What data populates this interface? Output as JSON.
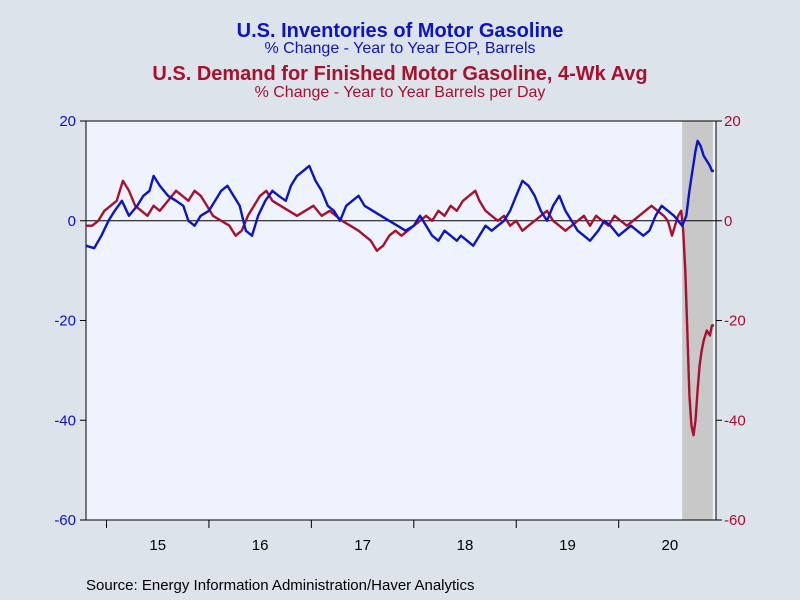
{
  "titles": {
    "title1": "U.S. Inventories of Motor Gasoline",
    "subtitle1": "% Change - Year to Year    EOP,  Barrels",
    "title2": "U.S. Demand for Finished Motor Gasoline, 4-Wk Avg",
    "subtitle2": "% Change - Year to Year     Barrels per Day"
  },
  "source": "Source:  Energy Information Administration/Haver Analytics",
  "colors": {
    "inventories": "#0b14c8",
    "demand": "#a8102e",
    "plot_bg": "#eef3fd",
    "shade": "#c8c8c8"
  },
  "chart_data": {
    "type": "line",
    "ylim": [
      -60,
      20
    ],
    "xlim": [
      2014.3,
      2020.45
    ],
    "y_ticks": [
      20,
      0,
      -20,
      -40,
      -60
    ],
    "x_tick_labels": [
      "15",
      "16",
      "17",
      "18",
      "19",
      "20"
    ],
    "x_label_pos": [
      2015.0,
      2016.0,
      2017.0,
      2018.0,
      2019.0,
      2020.0
    ],
    "recession_shade": [
      2020.12,
      2020.42
    ],
    "zero_line": true,
    "series": [
      {
        "name": "U.S. Inventories of Motor Gasoline",
        "axis": "left",
        "points": [
          [
            2014.3,
            -5
          ],
          [
            2014.38,
            -5.5
          ],
          [
            2014.45,
            -3
          ],
          [
            2014.52,
            0
          ],
          [
            2014.58,
            2
          ],
          [
            2014.65,
            4
          ],
          [
            2014.72,
            1
          ],
          [
            2014.8,
            3
          ],
          [
            2014.86,
            5
          ],
          [
            2014.92,
            6
          ],
          [
            2014.96,
            9
          ],
          [
            2015.02,
            7
          ],
          [
            2015.1,
            5
          ],
          [
            2015.18,
            4
          ],
          [
            2015.25,
            3
          ],
          [
            2015.3,
            0
          ],
          [
            2015.36,
            -1
          ],
          [
            2015.42,
            1
          ],
          [
            2015.5,
            2
          ],
          [
            2015.56,
            4
          ],
          [
            2015.62,
            6
          ],
          [
            2015.68,
            7
          ],
          [
            2015.74,
            5
          ],
          [
            2015.8,
            3
          ],
          [
            2015.86,
            -2
          ],
          [
            2015.92,
            -3
          ],
          [
            2015.98,
            1
          ],
          [
            2016.05,
            4
          ],
          [
            2016.12,
            6
          ],
          [
            2016.18,
            5
          ],
          [
            2016.25,
            4
          ],
          [
            2016.3,
            7
          ],
          [
            2016.36,
            9
          ],
          [
            2016.42,
            10
          ],
          [
            2016.48,
            11
          ],
          [
            2016.54,
            8
          ],
          [
            2016.6,
            6
          ],
          [
            2016.66,
            3
          ],
          [
            2016.72,
            2
          ],
          [
            2016.78,
            0
          ],
          [
            2016.84,
            3
          ],
          [
            2016.9,
            4
          ],
          [
            2016.96,
            5
          ],
          [
            2017.02,
            3
          ],
          [
            2017.1,
            2
          ],
          [
            2017.18,
            1
          ],
          [
            2017.26,
            0
          ],
          [
            2017.34,
            -1
          ],
          [
            2017.42,
            -2
          ],
          [
            2017.5,
            -1
          ],
          [
            2017.56,
            1
          ],
          [
            2017.62,
            -1
          ],
          [
            2017.68,
            -3
          ],
          [
            2017.74,
            -4
          ],
          [
            2017.8,
            -2
          ],
          [
            2017.86,
            -3
          ],
          [
            2017.92,
            -4
          ],
          [
            2017.96,
            -3
          ],
          [
            2018.02,
            -4
          ],
          [
            2018.08,
            -5
          ],
          [
            2018.14,
            -3
          ],
          [
            2018.2,
            -1
          ],
          [
            2018.26,
            -2
          ],
          [
            2018.32,
            -1
          ],
          [
            2018.38,
            0
          ],
          [
            2018.44,
            2
          ],
          [
            2018.5,
            5
          ],
          [
            2018.56,
            8
          ],
          [
            2018.62,
            7
          ],
          [
            2018.68,
            5
          ],
          [
            2018.74,
            2
          ],
          [
            2018.8,
            0
          ],
          [
            2018.86,
            3
          ],
          [
            2018.92,
            5
          ],
          [
            2018.98,
            2
          ],
          [
            2019.04,
            0
          ],
          [
            2019.1,
            -2
          ],
          [
            2019.16,
            -3
          ],
          [
            2019.22,
            -4
          ],
          [
            2019.3,
            -2
          ],
          [
            2019.36,
            0
          ],
          [
            2019.42,
            -1
          ],
          [
            2019.5,
            -3
          ],
          [
            2019.56,
            -2
          ],
          [
            2019.62,
            -1
          ],
          [
            2019.68,
            -2
          ],
          [
            2019.74,
            -3
          ],
          [
            2019.8,
            -2
          ],
          [
            2019.86,
            1
          ],
          [
            2019.92,
            3
          ],
          [
            2019.98,
            2
          ],
          [
            2020.04,
            1
          ],
          [
            2020.08,
            0
          ],
          [
            2020.12,
            -1
          ],
          [
            2020.16,
            1
          ],
          [
            2020.19,
            6
          ],
          [
            2020.22,
            10
          ],
          [
            2020.25,
            14
          ],
          [
            2020.27,
            16
          ],
          [
            2020.3,
            15
          ],
          [
            2020.33,
            13
          ],
          [
            2020.36,
            12
          ],
          [
            2020.39,
            11
          ],
          [
            2020.41,
            10
          ],
          [
            2020.43,
            10
          ]
        ]
      },
      {
        "name": "U.S. Demand for Finished Motor Gasoline, 4-Wk Avg",
        "axis": "right",
        "points": [
          [
            2014.3,
            -1
          ],
          [
            2014.36,
            -1
          ],
          [
            2014.42,
            0
          ],
          [
            2014.48,
            2
          ],
          [
            2014.54,
            3
          ],
          [
            2014.6,
            4
          ],
          [
            2014.66,
            8
          ],
          [
            2014.72,
            6
          ],
          [
            2014.78,
            3
          ],
          [
            2014.84,
            2
          ],
          [
            2014.9,
            1
          ],
          [
            2014.96,
            3
          ],
          [
            2015.02,
            2
          ],
          [
            2015.1,
            4
          ],
          [
            2015.18,
            6
          ],
          [
            2015.24,
            5
          ],
          [
            2015.3,
            4
          ],
          [
            2015.36,
            6
          ],
          [
            2015.42,
            5
          ],
          [
            2015.48,
            3
          ],
          [
            2015.54,
            1
          ],
          [
            2015.62,
            0
          ],
          [
            2015.7,
            -1
          ],
          [
            2015.76,
            -3
          ],
          [
            2015.82,
            -2
          ],
          [
            2015.88,
            1
          ],
          [
            2015.94,
            3
          ],
          [
            2016.0,
            5
          ],
          [
            2016.06,
            6
          ],
          [
            2016.12,
            4
          ],
          [
            2016.2,
            3
          ],
          [
            2016.28,
            2
          ],
          [
            2016.36,
            1
          ],
          [
            2016.44,
            2
          ],
          [
            2016.52,
            3
          ],
          [
            2016.6,
            1
          ],
          [
            2016.68,
            2
          ],
          [
            2016.74,
            1
          ],
          [
            2016.8,
            0
          ],
          [
            2016.88,
            -1
          ],
          [
            2016.96,
            -2
          ],
          [
            2017.02,
            -3
          ],
          [
            2017.08,
            -4
          ],
          [
            2017.14,
            -6
          ],
          [
            2017.2,
            -5
          ],
          [
            2017.26,
            -3
          ],
          [
            2017.32,
            -2
          ],
          [
            2017.38,
            -3
          ],
          [
            2017.44,
            -2
          ],
          [
            2017.5,
            -1
          ],
          [
            2017.56,
            0
          ],
          [
            2017.62,
            1
          ],
          [
            2017.68,
            0
          ],
          [
            2017.74,
            2
          ],
          [
            2017.8,
            1
          ],
          [
            2017.86,
            3
          ],
          [
            2017.92,
            2
          ],
          [
            2017.98,
            4
          ],
          [
            2018.04,
            5
          ],
          [
            2018.1,
            6
          ],
          [
            2018.14,
            4
          ],
          [
            2018.2,
            2
          ],
          [
            2018.26,
            1
          ],
          [
            2018.32,
            0
          ],
          [
            2018.38,
            1
          ],
          [
            2018.44,
            -1
          ],
          [
            2018.5,
            0
          ],
          [
            2018.56,
            -2
          ],
          [
            2018.62,
            -1
          ],
          [
            2018.68,
            0
          ],
          [
            2018.74,
            1
          ],
          [
            2018.8,
            2
          ],
          [
            2018.86,
            0
          ],
          [
            2018.92,
            -1
          ],
          [
            2018.98,
            -2
          ],
          [
            2019.04,
            -1
          ],
          [
            2019.1,
            0
          ],
          [
            2019.16,
            1
          ],
          [
            2019.22,
            -1
          ],
          [
            2019.28,
            1
          ],
          [
            2019.34,
            0
          ],
          [
            2019.4,
            -1
          ],
          [
            2019.46,
            1
          ],
          [
            2019.52,
            0
          ],
          [
            2019.58,
            -1
          ],
          [
            2019.64,
            0
          ],
          [
            2019.7,
            1
          ],
          [
            2019.76,
            2
          ],
          [
            2019.82,
            3
          ],
          [
            2019.88,
            2
          ],
          [
            2019.94,
            1
          ],
          [
            2019.98,
            0
          ],
          [
            2020.02,
            -3
          ],
          [
            2020.05,
            -1
          ],
          [
            2020.08,
            1
          ],
          [
            2020.11,
            2
          ],
          [
            2020.13,
            -2
          ],
          [
            2020.15,
            -10
          ],
          [
            2020.17,
            -22
          ],
          [
            2020.19,
            -35
          ],
          [
            2020.21,
            -41
          ],
          [
            2020.23,
            -43
          ],
          [
            2020.25,
            -40
          ],
          [
            2020.27,
            -34
          ],
          [
            2020.29,
            -29
          ],
          [
            2020.31,
            -26
          ],
          [
            2020.33,
            -24
          ],
          [
            2020.36,
            -22
          ],
          [
            2020.39,
            -23
          ],
          [
            2020.41,
            -21
          ],
          [
            2020.43,
            -21
          ]
        ]
      }
    ]
  }
}
